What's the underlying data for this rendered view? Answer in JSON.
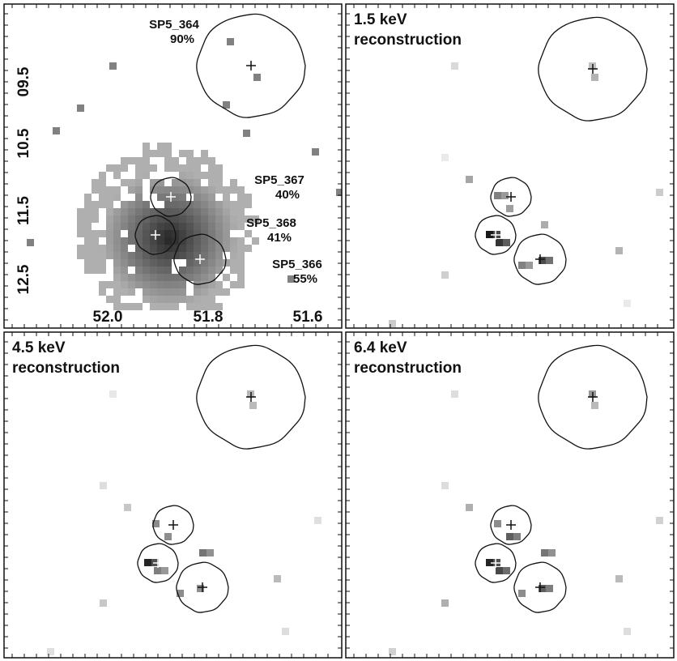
{
  "panels": [
    {
      "id": "raw",
      "title_lines": [],
      "x_tick_labels": [
        "52.0",
        "51.8",
        "51.6"
      ],
      "y_tick_labels": [
        "09.5",
        "10.5",
        "11.5",
        "12.5"
      ],
      "sources": [
        {
          "name": "SP5_364",
          "percent": "90%"
        },
        {
          "name": "SP5_367",
          "percent": "40%"
        },
        {
          "name": "SP5_368",
          "percent": "41%"
        },
        {
          "name": "SP5_366",
          "percent": "55%"
        }
      ]
    },
    {
      "id": "recon-1.5",
      "title_lines": [
        "1.5 keV",
        "reconstruction"
      ]
    },
    {
      "id": "recon-4.5",
      "title_lines": [
        "4.5 keV",
        "reconstruction"
      ]
    },
    {
      "id": "recon-6.4",
      "title_lines": [
        "6.4 keV",
        "reconstruction"
      ]
    }
  ],
  "colors": {
    "frame": "#111111",
    "pixel_dark": "#1a1a1a",
    "pixel_mid": "#6e6e6e",
    "pixel_light": "#cfcfcf"
  }
}
